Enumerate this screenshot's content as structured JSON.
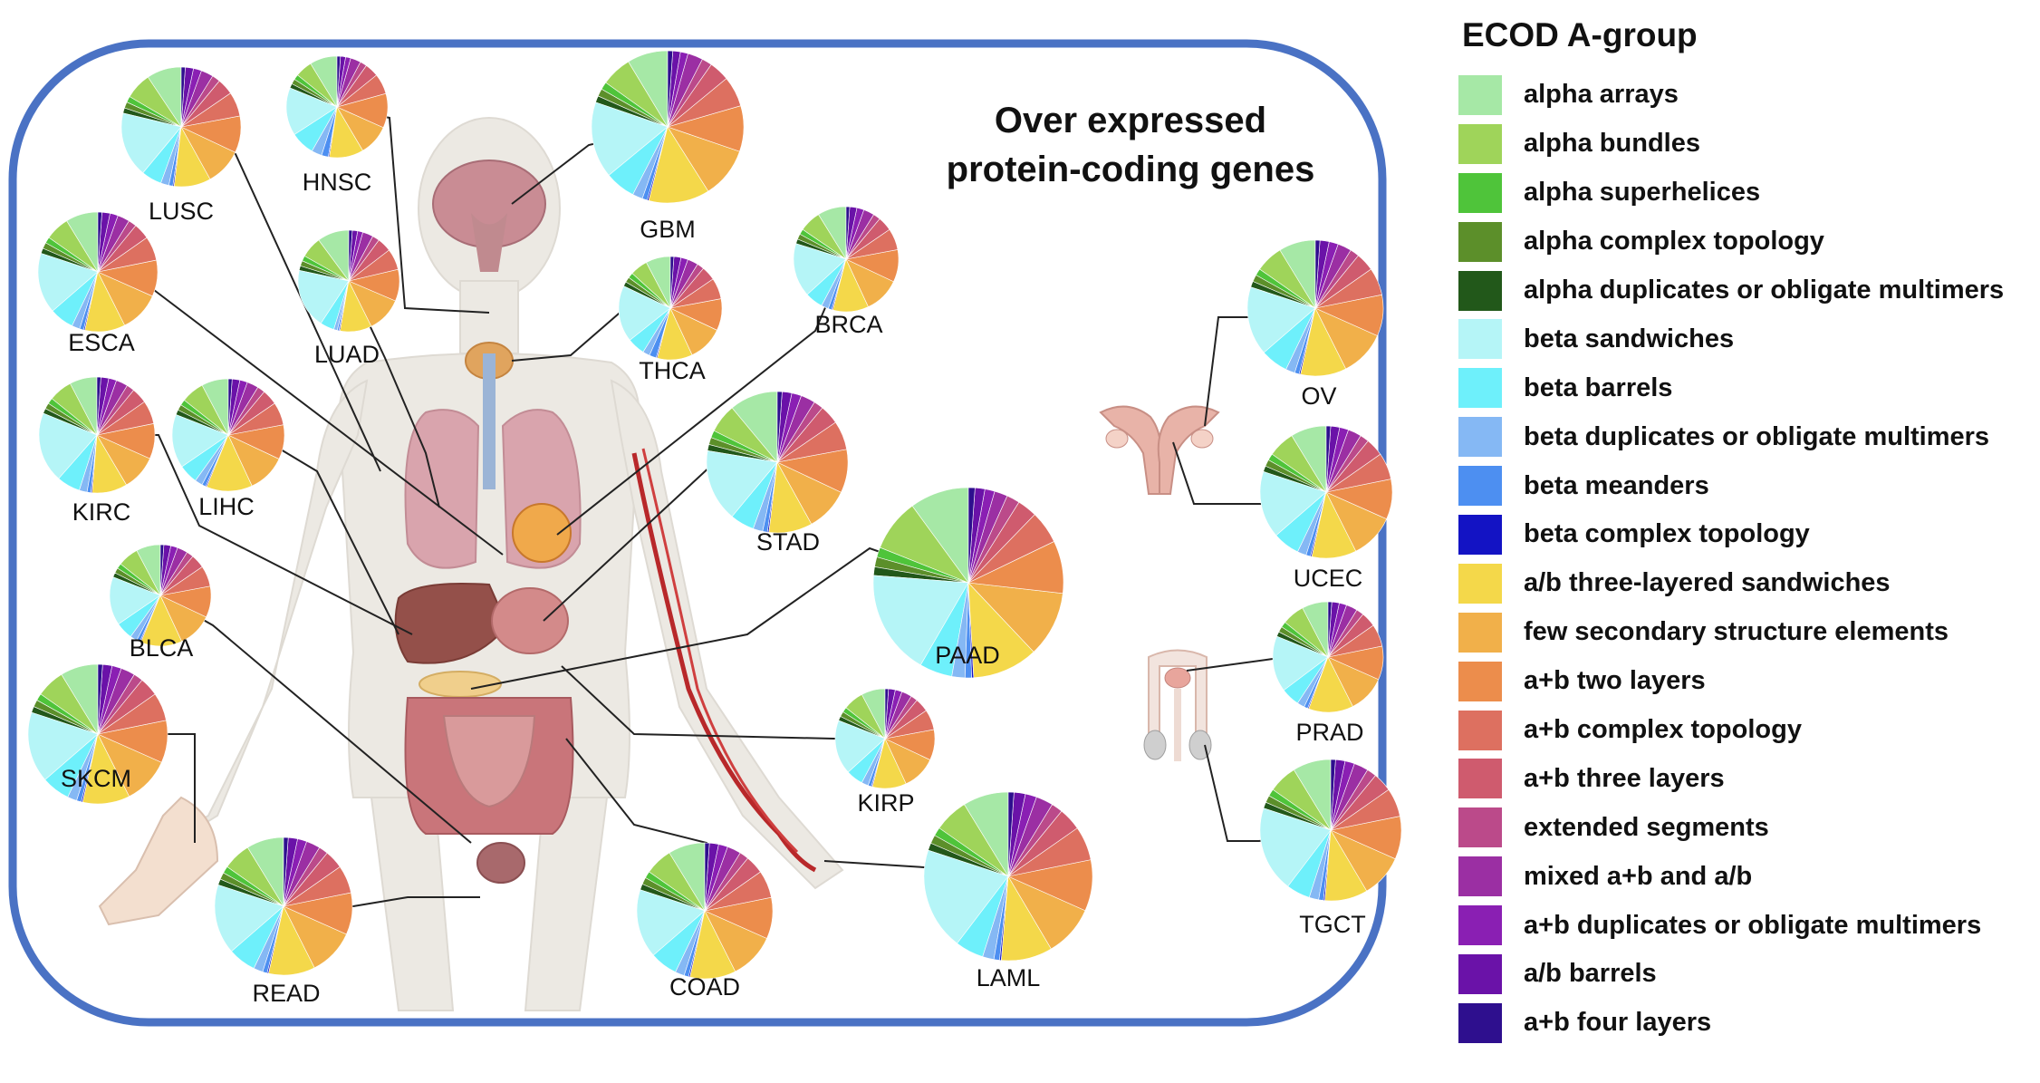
{
  "title": "Over expressed protein-coding genes",
  "legend": {
    "title": "ECOD A-group",
    "items": [
      {
        "label": "alpha arrays",
        "color": "#a6e8a6"
      },
      {
        "label": "alpha bundles",
        "color": "#9fd45a"
      },
      {
        "label": "alpha superhelices",
        "color": "#4fc43a"
      },
      {
        "label": "alpha complex topology",
        "color": "#5c8f2a"
      },
      {
        "label": "alpha duplicates or obligate multimers",
        "color": "#22581a"
      },
      {
        "label": "beta sandwiches",
        "color": "#b5f5f7"
      },
      {
        "label": "beta barrels",
        "color": "#6ef0fb"
      },
      {
        "label": "beta duplicates or obligate multimers",
        "color": "#85b8f4"
      },
      {
        "label": "beta meanders",
        "color": "#4d8ff1"
      },
      {
        "label": "beta complex topology",
        "color": "#1313c4"
      },
      {
        "label": "a/b three-layered sandwiches",
        "color": "#f4d84a"
      },
      {
        "label": "few secondary structure elements",
        "color": "#f1b04a"
      },
      {
        "label": "a+b two layers",
        "color": "#ec8d4c"
      },
      {
        "label": "a+b complex topology",
        "color": "#dd7060"
      },
      {
        "label": "a+b three layers",
        "color": "#cf5b6e"
      },
      {
        "label": "extended segments",
        "color": "#bb4a8a"
      },
      {
        "label": "mixed a+b and a/b",
        "color": "#9b2fa3"
      },
      {
        "label": "a+b duplicates or obligate multimers",
        "color": "#8a1fb3"
      },
      {
        "label": "a/b barrels",
        "color": "#6a12a8"
      },
      {
        "label": "a+b four layers",
        "color": "#2e0f8e"
      }
    ]
  },
  "chart_data": {
    "type": "pie",
    "categories": [
      "alpha arrays",
      "alpha bundles",
      "alpha superhelices",
      "alpha complex topology",
      "alpha duplicates or obligate multimers",
      "beta sandwiches",
      "beta barrels",
      "beta duplicates or obligate multimers",
      "beta meanders",
      "beta complex topology",
      "a/b three-layered sandwiches",
      "few secondary structure elements",
      "a+b two layers",
      "a+b complex topology",
      "a+b three layers",
      "extended segments",
      "mixed a+b and a/b",
      "a+b duplicates or obligate multimers",
      "a/b barrels",
      "a+b four layers"
    ],
    "series": [
      {
        "name": "LUSC",
        "values": [
          8.5,
          6.5,
          1.5,
          1.5,
          1.3,
          16,
          5,
          2,
          1,
          0.3,
          9,
          9,
          9,
          6,
          4,
          2,
          3,
          2,
          2,
          1
        ]
      },
      {
        "name": "HNSC",
        "values": [
          8,
          5,
          1.5,
          1.5,
          1.3,
          14,
          7,
          3,
          2,
          0.3,
          10,
          9,
          10,
          6,
          4,
          2,
          3,
          1.5,
          1.5,
          1
        ]
      },
      {
        "name": "GBM",
        "values": [
          8,
          6,
          1.5,
          1.5,
          1.3,
          15,
          6,
          2,
          1,
          0.3,
          12,
          10,
          9,
          6,
          4,
          2,
          3,
          1.5,
          1.5,
          1
        ]
      },
      {
        "name": "ESCA",
        "values": [
          8,
          6,
          1.5,
          1.5,
          1.3,
          15,
          6,
          2,
          1,
          0.3,
          10,
          10,
          9,
          6,
          4,
          2,
          3,
          2,
          2,
          1
        ]
      },
      {
        "name": "LUAD",
        "values": [
          9,
          6,
          1.5,
          1.5,
          1.3,
          17,
          4,
          1,
          0.5,
          0.3,
          9,
          10,
          9,
          6,
          4,
          2,
          3,
          1.5,
          1.5,
          1
        ]
      },
      {
        "name": "THCA",
        "values": [
          7,
          5,
          1.5,
          1.5,
          1.3,
          16,
          5,
          2,
          2,
          0.3,
          10,
          10,
          9,
          6,
          4,
          2,
          3,
          2,
          2,
          1
        ]
      },
      {
        "name": "BRCA",
        "values": [
          8,
          6,
          1.5,
          1.5,
          1.3,
          15,
          5,
          2,
          1,
          0.3,
          10,
          10,
          9,
          6,
          4,
          2,
          3,
          2,
          2,
          1
        ]
      },
      {
        "name": "KIRC",
        "values": [
          7,
          6,
          1.5,
          1.5,
          1.3,
          18,
          6,
          2,
          1,
          0.3,
          9,
          9,
          9,
          6,
          4,
          2,
          3,
          2,
          2,
          1
        ]
      },
      {
        "name": "LIHC",
        "values": [
          7,
          6,
          1.5,
          1.5,
          1.3,
          14,
          5,
          2,
          1,
          0.3,
          12,
          10,
          9,
          6,
          4,
          2,
          3,
          2,
          2,
          1
        ]
      },
      {
        "name": "STAD",
        "values": [
          10,
          6,
          1.5,
          1.5,
          1.3,
          15,
          5,
          2,
          1,
          0.3,
          9,
          9,
          9,
          6,
          4,
          2,
          3,
          2,
          2,
          1
        ]
      },
      {
        "name": "BLCA",
        "values": [
          7,
          6,
          1.5,
          1.5,
          1.3,
          14,
          5,
          2,
          1,
          0.3,
          12,
          10,
          9,
          6,
          4,
          2,
          3,
          2,
          2,
          1
        ]
      },
      {
        "name": "PAAD",
        "values": [
          9,
          8,
          1.5,
          1.5,
          1.3,
          16,
          5,
          2,
          1,
          0.3,
          10,
          10,
          8,
          5,
          3,
          2,
          2,
          1.5,
          1.5,
          1
        ]
      },
      {
        "name": "SKCM",
        "values": [
          8,
          6,
          1.5,
          1.5,
          1.3,
          15,
          6,
          2,
          1,
          0.3,
          10,
          10,
          9,
          6,
          4,
          2,
          3,
          2,
          2,
          1
        ]
      },
      {
        "name": "KIRP",
        "values": [
          7,
          6,
          1.5,
          1.5,
          1.3,
          16,
          5,
          2,
          1,
          0.3,
          10,
          10,
          9,
          6,
          4,
          2,
          3,
          2,
          2,
          1
        ]
      },
      {
        "name": "READ",
        "values": [
          8,
          6,
          1.5,
          1.5,
          1.3,
          15,
          6,
          2,
          1,
          0.3,
          10,
          10,
          9,
          6,
          4,
          2,
          3,
          2,
          2,
          1
        ]
      },
      {
        "name": "COAD",
        "values": [
          8,
          6,
          1.5,
          1.5,
          1.3,
          15,
          6,
          2,
          1,
          0.3,
          10,
          10,
          9,
          6,
          4,
          2,
          3,
          2,
          2,
          1
        ]
      },
      {
        "name": "LAML",
        "values": [
          8,
          6,
          1.5,
          1.5,
          1.3,
          18,
          5,
          2,
          1,
          0.3,
          9,
          9,
          9,
          6,
          4,
          2,
          3,
          2,
          2,
          1
        ]
      },
      {
        "name": "OV",
        "values": [
          8,
          6,
          1.5,
          1.5,
          1.3,
          15,
          6,
          2,
          1,
          0.3,
          10,
          10,
          9,
          6,
          4,
          2,
          3,
          2,
          2,
          1
        ]
      },
      {
        "name": "UCEC",
        "values": [
          8,
          6,
          1.5,
          1.5,
          1.3,
          15,
          6,
          2,
          1,
          0.3,
          10,
          10,
          9,
          6,
          4,
          2,
          3,
          2,
          2,
          1
        ]
      },
      {
        "name": "PRAD",
        "values": [
          7,
          6,
          1.5,
          1.5,
          1.3,
          15,
          5,
          2,
          1,
          0.3,
          12,
          10,
          9,
          6,
          4,
          2,
          3,
          2,
          2,
          1
        ]
      },
      {
        "name": "TGCT",
        "values": [
          8,
          6,
          1.5,
          1.5,
          1.3,
          18,
          5,
          2,
          1,
          0.3,
          9,
          9,
          9,
          6,
          4,
          2,
          3,
          2,
          2,
          1
        ]
      }
    ]
  }
}
